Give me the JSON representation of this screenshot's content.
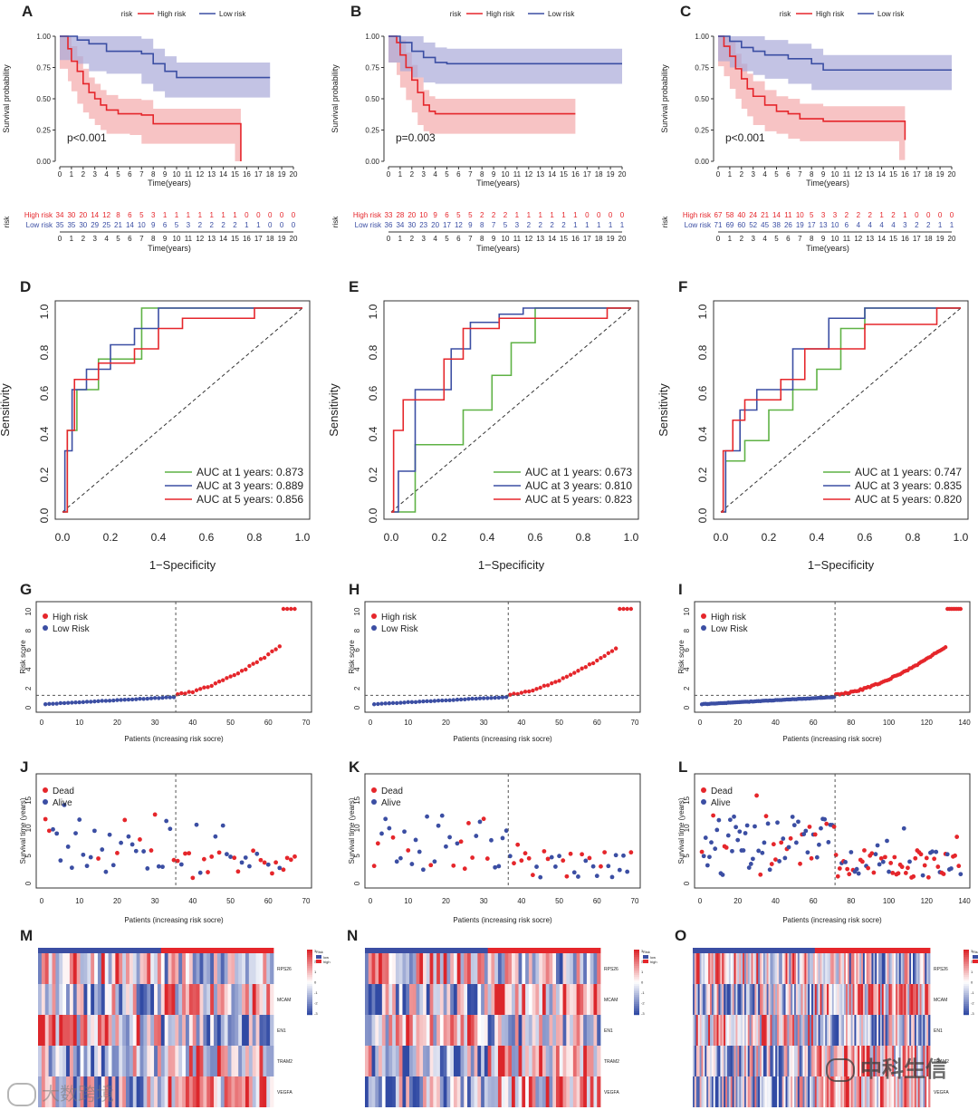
{
  "colors": {
    "high": "#e5262b",
    "low": "#3b4ea3",
    "high_fill": "#f4a9ab",
    "low_fill": "#a9a9d9",
    "green": "#5fb245",
    "blue": "#3b4ea3",
    "red": "#e5262b"
  },
  "heatmap_genes": [
    "RPS26",
    "MCAM",
    "EN1",
    "TRAM2",
    "VEGFA"
  ],
  "heatmap_legend": {
    "title": "Risk",
    "low": "low",
    "high": "high",
    "ticks": [
      "3",
      "2",
      "1",
      "0",
      "-1",
      "-2",
      "-3"
    ]
  },
  "watermark_left": "大数跨境",
  "watermark_right": "中科生信",
  "km_legend": {
    "title": "risk",
    "high": "High risk",
    "low": "Low risk"
  },
  "km_axis": {
    "xlabel": "Time(years)",
    "ylabel": "Survival probability",
    "xticks": [
      "0",
      "1",
      "2",
      "3",
      "4",
      "5",
      "6",
      "7",
      "8",
      "9",
      "10",
      "11",
      "12",
      "13",
      "14",
      "15",
      "16",
      "17",
      "18",
      "19",
      "20"
    ],
    "yticks": [
      "0.00",
      "0.25",
      "0.50",
      "0.75",
      "1.00"
    ]
  },
  "risk_table_label": "risk",
  "roc_axis": {
    "xlabel": "1−Specificity",
    "ylabel": "Sensitivity",
    "ticks": [
      "0.0",
      "0.2",
      "0.4",
      "0.6",
      "0.8",
      "1.0"
    ]
  },
  "score_axis": {
    "xlabel": "Patients (increasing risk socre)",
    "ylabel": "Risk score",
    "legend_high": "High risk",
    "legend_low": "Low Risk",
    "yticks": [
      "0",
      "2",
      "4",
      "6",
      "8",
      "10"
    ]
  },
  "surv_axis": {
    "xlabel": "Patients (increasing risk socre)",
    "ylabel": "Survival time (years)",
    "legend_dead": "Dead",
    "legend_alive": "Alive",
    "yticks": [
      "0",
      "5",
      "10",
      "15"
    ]
  },
  "chart_data": [
    {
      "panel": "A",
      "type": "line",
      "p_value": "p<0.001",
      "xlim": [
        0,
        20
      ],
      "ylim": [
        0,
        1
      ],
      "series": [
        {
          "name": "High risk",
          "x": [
            0,
            0.7,
            1,
            1.5,
            2,
            2.5,
            3,
            3.5,
            4,
            5,
            6,
            7,
            8,
            10,
            15,
            15.5
          ],
          "y": [
            1,
            0.9,
            0.8,
            0.72,
            0.62,
            0.55,
            0.5,
            0.45,
            0.41,
            0.38,
            0.38,
            0.37,
            0.3,
            0.3,
            0.3,
            0
          ]
        },
        {
          "name": "Low risk",
          "x": [
            0,
            1.5,
            2.5,
            4,
            7,
            8,
            9,
            10,
            18
          ],
          "y": [
            1,
            0.97,
            0.94,
            0.88,
            0.86,
            0.78,
            0.72,
            0.67,
            0.67
          ]
        }
      ],
      "risk_table": {
        "High risk": [
          "34",
          "30",
          "20",
          "14",
          "12",
          "8",
          "6",
          "5",
          "3",
          "1",
          "1",
          "1",
          "1",
          "1",
          "1",
          "1",
          "0",
          "0",
          "0",
          "0",
          "0"
        ],
        "Low risk": [
          "35",
          "35",
          "30",
          "29",
          "25",
          "21",
          "14",
          "10",
          "9",
          "6",
          "5",
          "3",
          "2",
          "2",
          "2",
          "2",
          "1",
          "1",
          "0",
          "0",
          "0"
        ]
      }
    },
    {
      "panel": "B",
      "type": "line",
      "p_value": "p=0.003",
      "xlim": [
        0,
        20
      ],
      "ylim": [
        0,
        1
      ],
      "series": [
        {
          "name": "High risk",
          "x": [
            0,
            0.7,
            1,
            1.5,
            2,
            2.5,
            3,
            3.5,
            4,
            5,
            8,
            16
          ],
          "y": [
            1,
            0.95,
            0.85,
            0.75,
            0.65,
            0.55,
            0.45,
            0.4,
            0.38,
            0.38,
            0.38,
            0.38
          ]
        },
        {
          "name": "Low risk",
          "x": [
            0,
            1,
            2,
            3,
            4,
            5,
            20
          ],
          "y": [
            1,
            0.95,
            0.88,
            0.83,
            0.79,
            0.78,
            0.78
          ]
        }
      ],
      "risk_table": {
        "High risk": [
          "33",
          "28",
          "20",
          "10",
          "9",
          "6",
          "5",
          "5",
          "2",
          "2",
          "2",
          "1",
          "1",
          "1",
          "1",
          "1",
          "1",
          "0",
          "0",
          "0",
          "0"
        ],
        "Low risk": [
          "36",
          "34",
          "30",
          "23",
          "20",
          "17",
          "12",
          "9",
          "8",
          "7",
          "5",
          "3",
          "2",
          "2",
          "2",
          "2",
          "1",
          "1",
          "1",
          "1",
          "1"
        ]
      }
    },
    {
      "panel": "C",
      "type": "line",
      "p_value": "p<0.001",
      "xlim": [
        0,
        20
      ],
      "ylim": [
        0,
        1
      ],
      "series": [
        {
          "name": "High risk",
          "x": [
            0,
            0.5,
            1,
            1.5,
            2,
            2.5,
            3,
            4,
            5,
            6,
            7,
            9,
            15.5,
            16
          ],
          "y": [
            1,
            0.92,
            0.84,
            0.74,
            0.66,
            0.58,
            0.52,
            0.45,
            0.4,
            0.38,
            0.34,
            0.32,
            0.32,
            0.17
          ]
        },
        {
          "name": "Low risk",
          "x": [
            0,
            1,
            2,
            3,
            4,
            6,
            8,
            9,
            20
          ],
          "y": [
            1,
            0.96,
            0.91,
            0.88,
            0.85,
            0.82,
            0.78,
            0.73,
            0.73
          ]
        }
      ],
      "risk_table": {
        "High risk": [
          "67",
          "58",
          "40",
          "24",
          "21",
          "14",
          "11",
          "10",
          "5",
          "3",
          "3",
          "2",
          "2",
          "2",
          "1",
          "2",
          "1",
          "0",
          "0",
          "0",
          "0"
        ],
        "Low risk": [
          "71",
          "69",
          "60",
          "52",
          "45",
          "38",
          "26",
          "19",
          "17",
          "13",
          "10",
          "6",
          "4",
          "4",
          "4",
          "4",
          "3",
          "2",
          "2",
          "1",
          "1"
        ]
      }
    },
    {
      "panel": "D",
      "type": "line",
      "xlim": [
        0,
        1
      ],
      "ylim": [
        0,
        1
      ],
      "series": [
        {
          "name": "AUC at 1 years: 0.873",
          "x": [
            0,
            0.02,
            0.02,
            0.06,
            0.06,
            0.15,
            0.15,
            0.33,
            0.33,
            1
          ],
          "y": [
            0,
            0,
            0.4,
            0.4,
            0.6,
            0.6,
            0.75,
            0.75,
            1,
            1
          ]
        },
        {
          "name": "AUC at 3 years: 0.889",
          "x": [
            0,
            0.01,
            0.01,
            0.04,
            0.04,
            0.1,
            0.1,
            0.2,
            0.2,
            0.3,
            0.3,
            0.4,
            0.4,
            1
          ],
          "y": [
            0,
            0,
            0.3,
            0.3,
            0.6,
            0.6,
            0.7,
            0.7,
            0.82,
            0.82,
            0.9,
            0.9,
            1,
            1
          ]
        },
        {
          "name": "AUC at 5 years: 0.856",
          "x": [
            0,
            0.02,
            0.02,
            0.05,
            0.05,
            0.15,
            0.15,
            0.3,
            0.3,
            0.4,
            0.4,
            0.5,
            0.5,
            0.8,
            0.8,
            1
          ],
          "y": [
            0,
            0,
            0.4,
            0.4,
            0.65,
            0.65,
            0.73,
            0.73,
            0.8,
            0.8,
            0.9,
            0.9,
            0.95,
            0.95,
            1,
            1
          ]
        }
      ]
    },
    {
      "panel": "E",
      "type": "line",
      "xlim": [
        0,
        1
      ],
      "ylim": [
        0,
        1
      ],
      "series": [
        {
          "name": "AUC at 1 years: 0.673",
          "x": [
            0,
            0.1,
            0.1,
            0.3,
            0.3,
            0.42,
            0.42,
            0.5,
            0.5,
            0.6,
            0.6,
            1
          ],
          "y": [
            0,
            0,
            0.33,
            0.33,
            0.5,
            0.5,
            0.67,
            0.67,
            0.83,
            0.83,
            1,
            1
          ]
        },
        {
          "name": "AUC at 3 years: 0.810",
          "x": [
            0,
            0.03,
            0.03,
            0.1,
            0.1,
            0.25,
            0.25,
            0.33,
            0.33,
            0.45,
            0.45,
            0.55,
            0.55,
            1
          ],
          "y": [
            0,
            0,
            0.2,
            0.2,
            0.6,
            0.6,
            0.8,
            0.8,
            0.93,
            0.93,
            0.97,
            0.97,
            1,
            1
          ]
        },
        {
          "name": "AUC at 5 years: 0.823",
          "x": [
            0,
            0.01,
            0.01,
            0.05,
            0.05,
            0.22,
            0.22,
            0.3,
            0.3,
            0.45,
            0.45,
            0.9,
            0.9,
            1
          ],
          "y": [
            0,
            0,
            0.4,
            0.4,
            0.55,
            0.55,
            0.75,
            0.75,
            0.9,
            0.9,
            0.95,
            0.95,
            1,
            1
          ]
        }
      ]
    },
    {
      "panel": "F",
      "type": "line",
      "xlim": [
        0,
        1
      ],
      "ylim": [
        0,
        1
      ],
      "series": [
        {
          "name": "AUC at 1 years: 0.747",
          "x": [
            0,
            0.02,
            0.02,
            0.1,
            0.1,
            0.2,
            0.2,
            0.3,
            0.3,
            0.4,
            0.4,
            0.5,
            0.5,
            0.6,
            0.6,
            1
          ],
          "y": [
            0,
            0,
            0.25,
            0.25,
            0.35,
            0.35,
            0.5,
            0.5,
            0.6,
            0.6,
            0.7,
            0.7,
            0.9,
            0.9,
            1,
            1
          ]
        },
        {
          "name": "AUC at 3 years: 0.835",
          "x": [
            0,
            0.02,
            0.02,
            0.08,
            0.08,
            0.15,
            0.15,
            0.3,
            0.3,
            0.45,
            0.45,
            0.6,
            0.6,
            1
          ],
          "y": [
            0,
            0,
            0.3,
            0.3,
            0.5,
            0.5,
            0.6,
            0.6,
            0.8,
            0.8,
            0.95,
            0.95,
            1,
            1
          ]
        },
        {
          "name": "AUC at 5 years: 0.820",
          "x": [
            0,
            0.01,
            0.01,
            0.05,
            0.05,
            0.1,
            0.1,
            0.25,
            0.25,
            0.35,
            0.35,
            0.6,
            0.6,
            0.9,
            0.9,
            1
          ],
          "y": [
            0,
            0,
            0.3,
            0.3,
            0.45,
            0.45,
            0.55,
            0.55,
            0.65,
            0.65,
            0.8,
            0.8,
            0.92,
            0.92,
            1,
            1
          ]
        }
      ]
    },
    {
      "panel": "G",
      "type": "scatter",
      "n": 67,
      "cutoff": 35,
      "threshold": 1,
      "xlim": [
        0,
        70
      ],
      "ylim": [
        0,
        10
      ],
      "max_score": 6,
      "capped": 4,
      "xticks": [
        "0",
        "10",
        "20",
        "30",
        "40",
        "50",
        "60",
        "70"
      ]
    },
    {
      "panel": "H",
      "type": "scatter",
      "n": 69,
      "cutoff": 36,
      "threshold": 1,
      "xlim": [
        0,
        70
      ],
      "ylim": [
        0,
        10
      ],
      "max_score": 5.8,
      "capped": 4,
      "xticks": [
        "0",
        "10",
        "20",
        "30",
        "40",
        "50",
        "60",
        "70"
      ]
    },
    {
      "panel": "I",
      "type": "scatter",
      "n": 138,
      "cutoff": 71,
      "threshold": 1,
      "xlim": [
        0,
        140
      ],
      "ylim": [
        0,
        10
      ],
      "max_score": 6,
      "capped": 8,
      "xticks": [
        "0",
        "20",
        "40",
        "60",
        "80",
        "100",
        "120",
        "140"
      ]
    },
    {
      "panel": "J",
      "type": "scatter",
      "n": 67,
      "cutoff": 35,
      "xlim": [
        0,
        70
      ],
      "ylim": [
        0,
        18
      ],
      "xticks": [
        "0",
        "10",
        "20",
        "30",
        "40",
        "50",
        "60",
        "70"
      ]
    },
    {
      "panel": "K",
      "type": "scatter",
      "n": 69,
      "cutoff": 36,
      "xlim": [
        0,
        70
      ],
      "ylim": [
        0,
        18
      ],
      "xticks": [
        "0",
        "10",
        "20",
        "30",
        "40",
        "50",
        "60",
        "70"
      ]
    },
    {
      "panel": "L",
      "type": "scatter",
      "n": 138,
      "cutoff": 71,
      "xlim": [
        0,
        140
      ],
      "ylim": [
        0,
        18
      ],
      "xticks": [
        "0",
        "20",
        "40",
        "60",
        "80",
        "100",
        "120",
        "140"
      ]
    },
    {
      "panel": "M",
      "type": "heatmap",
      "n": 67,
      "cutoff": 35
    },
    {
      "panel": "N",
      "type": "heatmap",
      "n": 69,
      "cutoff": 36
    },
    {
      "panel": "O",
      "type": "heatmap",
      "n": 138,
      "cutoff": 71
    }
  ]
}
